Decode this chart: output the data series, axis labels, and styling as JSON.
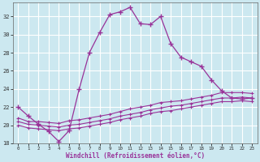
{
  "xlabel": "Windchill (Refroidissement éolien,°C)",
  "x": [
    0,
    1,
    2,
    3,
    4,
    5,
    6,
    7,
    8,
    9,
    10,
    11,
    12,
    13,
    14,
    15,
    16,
    17,
    18,
    19,
    20,
    21,
    22,
    23
  ],
  "line1": [
    22,
    21,
    20.1,
    19.3,
    18.2,
    19.4,
    24,
    28,
    30.2,
    32.2,
    32.5,
    33,
    31.2,
    31.1,
    32,
    29,
    27.5,
    27,
    26.5,
    25,
    23.8,
    23,
    22.9,
    23
  ],
  "line2": [
    20.8,
    20.4,
    20.4,
    20.3,
    20.2,
    20.5,
    20.6,
    20.8,
    21.0,
    21.2,
    21.5,
    21.8,
    22.0,
    22.2,
    22.5,
    22.6,
    22.7,
    22.9,
    23.1,
    23.3,
    23.6,
    23.6,
    23.6,
    23.5
  ],
  "line3": [
    20.4,
    20.1,
    20.0,
    19.9,
    19.8,
    20.0,
    20.1,
    20.3,
    20.5,
    20.7,
    21.0,
    21.2,
    21.4,
    21.7,
    21.9,
    22.1,
    22.2,
    22.4,
    22.6,
    22.8,
    23.0,
    23.0,
    23.1,
    23.0
  ],
  "line4": [
    20.0,
    19.7,
    19.6,
    19.5,
    19.4,
    19.6,
    19.7,
    19.9,
    20.1,
    20.3,
    20.6,
    20.8,
    21.0,
    21.3,
    21.5,
    21.6,
    21.8,
    22.0,
    22.2,
    22.4,
    22.6,
    22.6,
    22.7,
    22.6
  ],
  "line_color": "#993399",
  "bg_color": "#cce8f0",
  "grid_color": "#ffffff",
  "ylim": [
    18,
    33.5
  ],
  "yticks": [
    18,
    20,
    22,
    24,
    26,
    28,
    30,
    32
  ],
  "xticks": [
    0,
    1,
    2,
    3,
    4,
    5,
    6,
    7,
    8,
    9,
    10,
    11,
    12,
    13,
    14,
    15,
    16,
    17,
    18,
    19,
    20,
    21,
    22,
    23
  ]
}
